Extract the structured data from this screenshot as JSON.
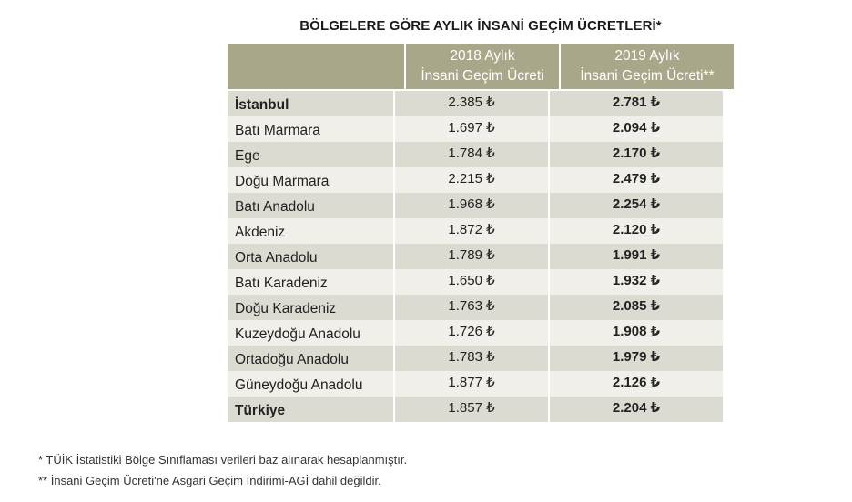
{
  "title": "BÖLGELERE GÖRE AYLIK İNSANİ GEÇİM ÜCRETLERİ*",
  "header": {
    "col1_line1": "2018 Aylık",
    "col1_line2": "İnsani Geçim Ücreti",
    "col2_line1": "2019 Aylık",
    "col2_line2": "İnsani Geçim Ücreti**"
  },
  "rows": [
    {
      "region": "İstanbul",
      "y2018": "2.385 ₺",
      "y2019": "2.781 ₺"
    },
    {
      "region": "Batı Marmara",
      "y2018": "1.697 ₺",
      "y2019": "2.094 ₺"
    },
    {
      "region": "Ege",
      "y2018": "1.784 ₺",
      "y2019": "2.170 ₺"
    },
    {
      "region": "Doğu Marmara",
      "y2018": "2.215 ₺",
      "y2019": "2.479 ₺"
    },
    {
      "region": "Batı Anadolu",
      "y2018": "1.968 ₺",
      "y2019": "2.254 ₺"
    },
    {
      "region": "Akdeniz",
      "y2018": "1.872 ₺",
      "y2019": "2.120 ₺"
    },
    {
      "region": "Orta Anadolu",
      "y2018": "1.789 ₺",
      "y2019": "1.991 ₺"
    },
    {
      "region": "Batı Karadeniz",
      "y2018": "1.650 ₺",
      "y2019": "1.932 ₺"
    },
    {
      "region": "Doğu Karadeniz",
      "y2018": "1.763 ₺",
      "y2019": "2.085 ₺"
    },
    {
      "region": "Kuzeydoğu Anadolu",
      "y2018": "1.726 ₺",
      "y2019": "1.908 ₺"
    },
    {
      "region": "Ortadoğu Anadolu",
      "y2018": "1.783 ₺",
      "y2019": "1.979 ₺"
    },
    {
      "region": "Güneydoğu Anadolu",
      "y2018": "1.877 ₺",
      "y2019": "2.126 ₺"
    },
    {
      "region": "Türkiye",
      "y2018": "1.857 ₺",
      "y2019": "2.204 ₺"
    }
  ],
  "notes": {
    "note1": "* TÜİK İstatistiki Bölge Sınıflaması verileri baz alınarak hesaplanmıştır.",
    "note2": "** İnsani Geçim Ücreti'ne Asgari Geçim İndirimi-AGİ dahil değildir."
  },
  "colors": {
    "header_bg": "#a9a78a",
    "row_dark": "#dcdbd1",
    "row_light": "#f0efe9"
  }
}
